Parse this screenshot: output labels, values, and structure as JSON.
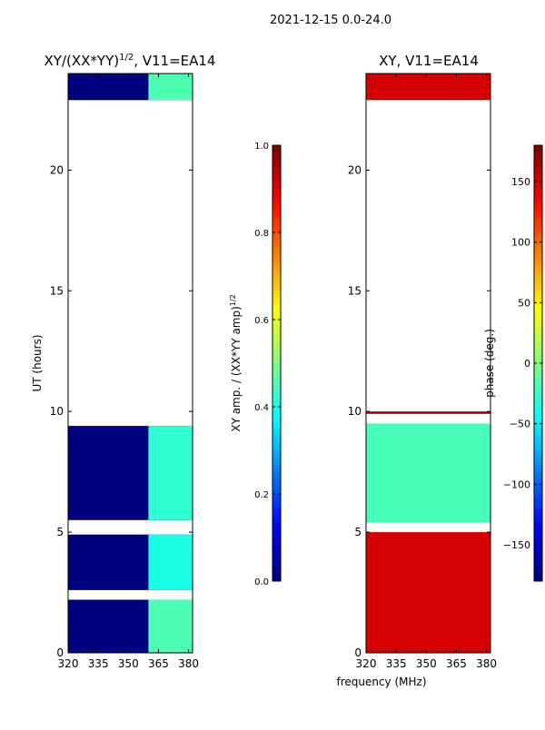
{
  "figure": {
    "title": "2021-12-15 0.0-24.0",
    "xlabel": "frequency (MHz)"
  },
  "colors": {
    "jet": [
      "#00007f",
      "#0000ff",
      "#007fff",
      "#00ffff",
      "#7fff7f",
      "#ffff00",
      "#ff7f00",
      "#ff0000",
      "#7f0000"
    ],
    "blank": "#ffffff"
  },
  "chart_data": [
    {
      "type": "heatmap",
      "panel": "left",
      "title_main": "XY/(XX*YY)",
      "title_sup": "1/2",
      "title_tail": ", V11=EA14",
      "xlabel": "",
      "ylabel": "UT (hours)",
      "xlim": [
        320,
        382
      ],
      "ylim": [
        0,
        24
      ],
      "xticks": [
        320,
        335,
        350,
        365,
        380
      ],
      "yticks": [
        0,
        5,
        10,
        15,
        20
      ],
      "value_range": [
        0,
        1
      ],
      "data_blocks": [
        {
          "t0": 0.0,
          "t1": 2.2,
          "f0": 320,
          "f1": 382,
          "level": 0.0
        },
        {
          "t0": 0.0,
          "t1": 2.2,
          "f0": 360,
          "f1": 382,
          "level": 0.45
        },
        {
          "t0": 2.6,
          "t1": 4.9,
          "f0": 320,
          "f1": 382,
          "level": 0.0
        },
        {
          "t0": 2.6,
          "t1": 4.9,
          "f0": 360,
          "f1": 382,
          "level": 0.4
        },
        {
          "t0": 5.5,
          "t1": 9.4,
          "f0": 320,
          "f1": 382,
          "level": 0.0
        },
        {
          "t0": 5.5,
          "t1": 9.4,
          "f0": 360,
          "f1": 382,
          "level": 0.42
        },
        {
          "t0": 22.9,
          "t1": 24.0,
          "f0": 320,
          "f1": 382,
          "level": 0.0
        },
        {
          "t0": 22.9,
          "t1": 24.0,
          "f0": 360,
          "f1": 382,
          "level": 0.45
        }
      ]
    },
    {
      "type": "heatmap",
      "panel": "right",
      "title_main": "XY, V11=EA14",
      "title_sup": "",
      "title_tail": "",
      "xlabel": "",
      "ylabel": "",
      "xlim": [
        320,
        382
      ],
      "ylim": [
        0,
        24
      ],
      "xticks": [
        320,
        335,
        350,
        365,
        380
      ],
      "yticks": [
        0,
        5,
        10,
        15,
        20
      ],
      "value_range": [
        -180,
        180
      ],
      "data_blocks": [
        {
          "t0": 0.0,
          "t1": 5.0,
          "f0": 320,
          "f1": 382,
          "level": 150
        },
        {
          "t0": 5.4,
          "t1": 9.5,
          "f0": 320,
          "f1": 382,
          "level": -20
        },
        {
          "t0": 9.9,
          "t1": 10.0,
          "f0": 320,
          "f1": 382,
          "level": 160
        },
        {
          "t0": 22.9,
          "t1": 24.0,
          "f0": 320,
          "f1": 382,
          "level": 150
        }
      ]
    }
  ],
  "colorbars": [
    {
      "label_main": "XY amp. / (XX*YY amp)",
      "label_sup": "1/2",
      "range": [
        0,
        1
      ],
      "ticks": [
        0.0,
        0.2,
        0.4,
        0.6,
        0.8,
        1.0
      ],
      "tick_labels": [
        "0.0",
        "0.2",
        "0.4",
        "0.6",
        "0.8",
        "1.0"
      ]
    },
    {
      "label_main": "phase (deg.)",
      "label_sup": "",
      "range": [
        -180,
        180
      ],
      "ticks": [
        -150,
        -100,
        -50,
        0,
        50,
        100,
        150
      ],
      "tick_labels": [
        "−150",
        "−100",
        "−50",
        "0",
        "50",
        "100",
        "150"
      ]
    }
  ]
}
